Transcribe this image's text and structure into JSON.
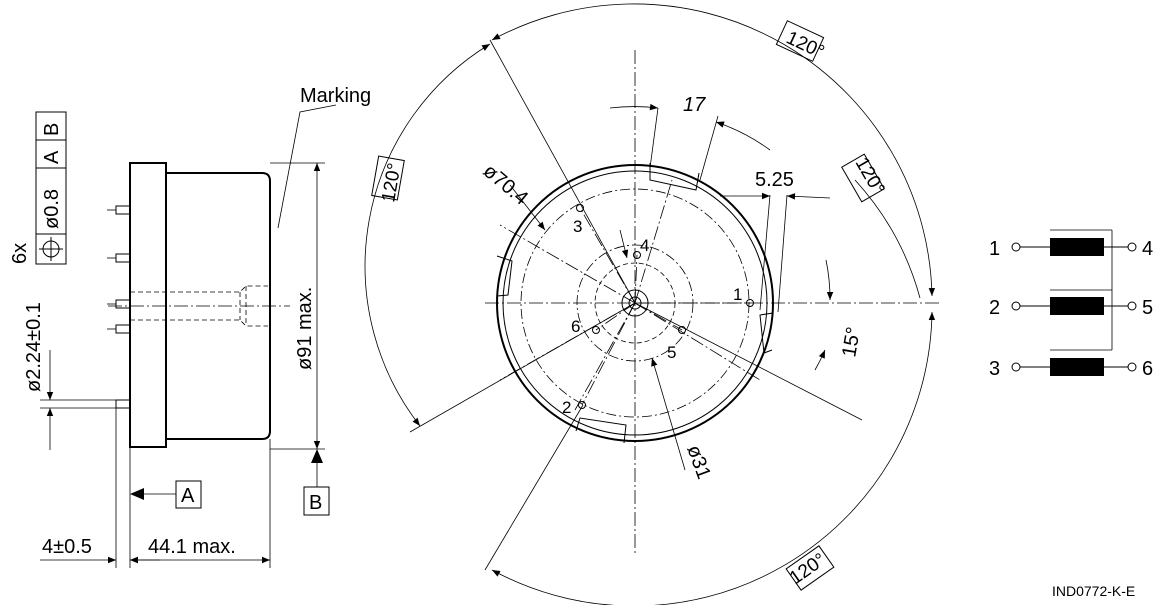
{
  "side_view": {
    "marking_label": "Marking",
    "diameter_label": "ø91 max.",
    "pin_diameter_label": "ø2.24±0.1",
    "offset_label": "4±0.5",
    "length_label": "44.1 max.",
    "datum_a": "A",
    "datum_b": "B"
  },
  "tolerance_frame": {
    "count": "6x",
    "symbol": "position",
    "tolerance": "ø0.8",
    "ref1": "A",
    "ref2": "B"
  },
  "front_view": {
    "angle_top": "120°",
    "angle_left": "120°",
    "angle_right": "120°",
    "angle_bottom": "120°",
    "dim_17": "17",
    "dim_5_25": "5.25",
    "dim_70_4": "ø70.4",
    "dim_31": "ø31",
    "angle_15": "15°",
    "pin_labels": [
      "1",
      "2",
      "3",
      "4",
      "5",
      "6"
    ]
  },
  "schematic": {
    "left_pins": [
      "1",
      "2",
      "3"
    ],
    "right_pins": [
      "4",
      "5",
      "6"
    ]
  },
  "drawing_id": "IND0772-K-E"
}
